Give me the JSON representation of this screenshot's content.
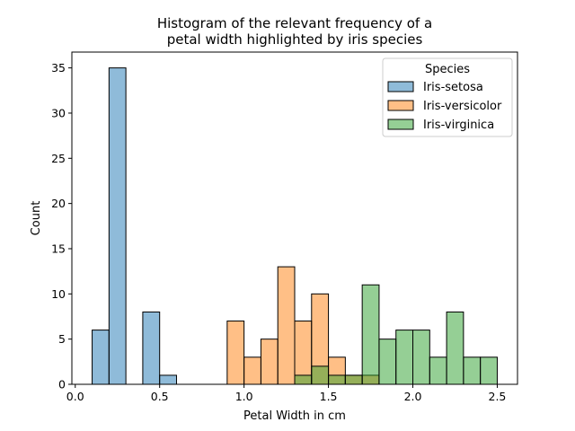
{
  "chart_data": {
    "type": "bar",
    "title_lines": [
      "Histogram of the relevant frequency of a",
      "petal width highlighted by iris species"
    ],
    "xlabel": "Petal Width in cm",
    "ylabel": "Count",
    "xlim": [
      -0.02,
      2.62
    ],
    "ylim": [
      0,
      36.75
    ],
    "xticks": [
      0.0,
      0.5,
      1.0,
      1.5,
      2.0,
      2.5
    ],
    "xtick_labels": [
      "0.0",
      "0.5",
      "1.0",
      "1.5",
      "2.0",
      "2.5"
    ],
    "yticks": [
      0,
      5,
      10,
      15,
      20,
      25,
      30,
      35
    ],
    "ytick_labels": [
      "0",
      "5",
      "10",
      "15",
      "20",
      "25",
      "30",
      "35"
    ],
    "bin_width": 0.1,
    "legend": {
      "title": "Species",
      "position": "top-right"
    },
    "series": [
      {
        "name": "Iris-setosa",
        "color": "#1f77b4",
        "bins": [
          {
            "x0": 0.1,
            "count": 6
          },
          {
            "x0": 0.2,
            "count": 35
          },
          {
            "x0": 0.4,
            "count": 8
          },
          {
            "x0": 0.5,
            "count": 1
          }
        ]
      },
      {
        "name": "Iris-versicolor",
        "color": "#ff7f0e",
        "bins": [
          {
            "x0": 0.9,
            "count": 7
          },
          {
            "x0": 1.0,
            "count": 3
          },
          {
            "x0": 1.1,
            "count": 5
          },
          {
            "x0": 1.2,
            "count": 13
          },
          {
            "x0": 1.3,
            "count": 7
          },
          {
            "x0": 1.4,
            "count": 10
          },
          {
            "x0": 1.5,
            "count": 3
          },
          {
            "x0": 1.6,
            "count": 1
          },
          {
            "x0": 1.7,
            "count": 1
          }
        ]
      },
      {
        "name": "Iris-virginica",
        "color": "#2ca02c",
        "bins": [
          {
            "x0": 1.3,
            "count": 1
          },
          {
            "x0": 1.4,
            "count": 2
          },
          {
            "x0": 1.5,
            "count": 1
          },
          {
            "x0": 1.6,
            "count": 1
          },
          {
            "x0": 1.7,
            "count": 11
          },
          {
            "x0": 1.8,
            "count": 5
          },
          {
            "x0": 1.9,
            "count": 6
          },
          {
            "x0": 2.0,
            "count": 6
          },
          {
            "x0": 2.1,
            "count": 3
          },
          {
            "x0": 2.2,
            "count": 8
          },
          {
            "x0": 2.3,
            "count": 3
          },
          {
            "x0": 2.4,
            "count": 3
          }
        ]
      }
    ]
  }
}
